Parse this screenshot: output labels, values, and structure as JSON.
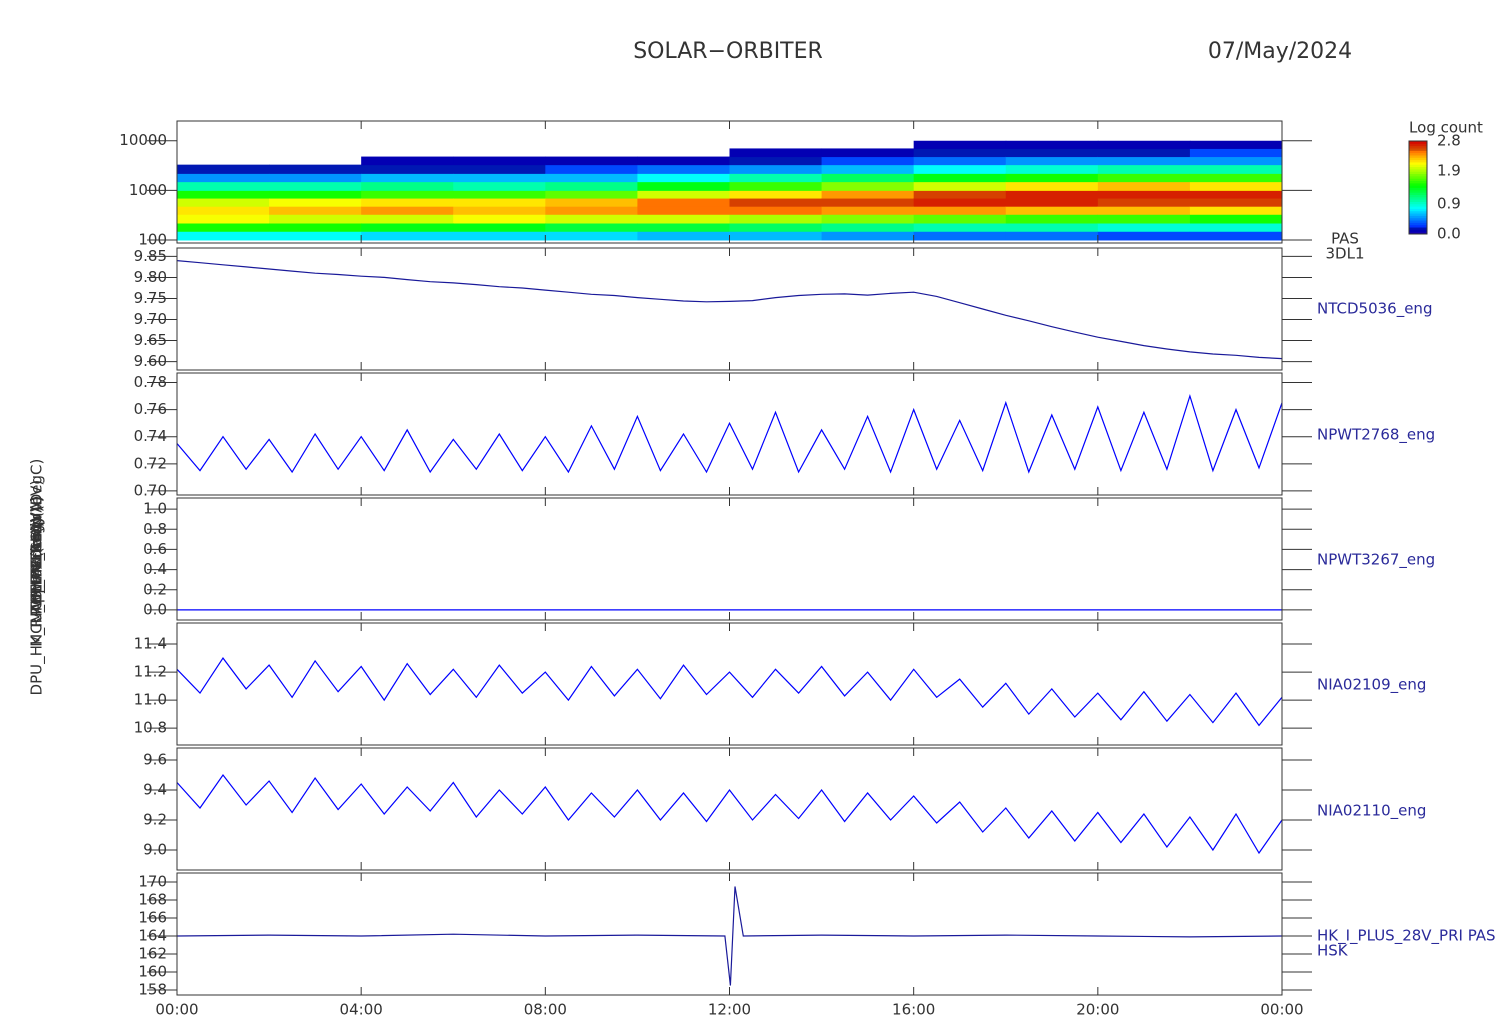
{
  "title": "SOLAR−ORBITER",
  "date": "07/May/2024",
  "chart_data": [
    {
      "type": "spectrogram",
      "ytitle": "Energy (eV)",
      "labels": [
        "PAS",
        "3DL1"
      ],
      "ylog": true,
      "ylim": [
        87,
        25000
      ],
      "yticks": [
        100,
        1000,
        10000
      ],
      "xlim": [
        0,
        24
      ],
      "x_bins": [
        0,
        2,
        4,
        6,
        8,
        10,
        12,
        14,
        16,
        18,
        20,
        22,
        24
      ],
      "y_bins": [
        100,
        150,
        220,
        330,
        480,
        700,
        1000,
        1500,
        2200,
        3300,
        4800,
        7000,
        10000
      ],
      "z": [
        [
          0.8,
          1.5,
          2.1,
          2.2,
          2.0,
          1.5,
          1.0,
          0.5,
          0.2,
          null,
          null,
          null
        ],
        [
          0.8,
          1.5,
          2.0,
          2.3,
          2.1,
          1.5,
          1.0,
          0.5,
          0.2,
          null,
          null,
          null
        ],
        [
          0.7,
          1.4,
          2.0,
          2.4,
          2.2,
          1.6,
          1.1,
          0.6,
          0.2,
          0.1,
          null,
          null
        ],
        [
          0.7,
          1.4,
          2.1,
          2.3,
          2.2,
          1.6,
          1.0,
          0.6,
          0.2,
          0.1,
          null,
          null
        ],
        [
          0.7,
          1.3,
          2.0,
          2.4,
          2.3,
          1.7,
          1.1,
          0.6,
          0.3,
          0.1,
          null,
          null
        ],
        [
          0.6,
          1.3,
          2.0,
          2.5,
          2.5,
          2.0,
          1.4,
          0.8,
          0.4,
          0.1,
          null,
          null
        ],
        [
          0.6,
          1.2,
          1.9,
          2.5,
          2.6,
          2.2,
          1.6,
          1.0,
          0.5,
          0.2,
          0.1,
          null
        ],
        [
          0.5,
          1.1,
          1.8,
          2.4,
          2.6,
          2.4,
          1.8,
          1.2,
          0.6,
          0.3,
          0.1,
          null
        ],
        [
          0.4,
          1.0,
          1.7,
          2.4,
          2.7,
          2.6,
          2.0,
          1.4,
          0.8,
          0.4,
          0.2,
          0.1
        ],
        [
          0.4,
          1.0,
          1.6,
          2.3,
          2.7,
          2.7,
          2.2,
          1.5,
          0.9,
          0.5,
          0.2,
          0.1
        ],
        [
          0.3,
          0.9,
          1.6,
          2.3,
          2.6,
          2.7,
          2.3,
          1.6,
          1.0,
          0.5,
          0.2,
          0.1
        ],
        [
          0.3,
          0.9,
          1.5,
          2.2,
          2.6,
          2.7,
          2.2,
          1.6,
          1.0,
          0.5,
          0.3,
          0.1
        ]
      ],
      "colorbar_title": "Log count",
      "clim": [
        0,
        2.8
      ],
      "cticks": [
        {
          "value": 0,
          "label": "0.0"
        },
        0.9,
        1.9,
        2.8
      ]
    },
    {
      "type": "line",
      "ytitle": "Approx Temp (DegC)",
      "labels": [
        "NTCD5036_eng"
      ],
      "color": "#1a1a9a",
      "ylim": [
        9.58,
        9.87
      ],
      "xlim": [
        0,
        24
      ],
      "yticks": [
        {
          "value": 9.6,
          "label": "9.60"
        },
        9.65,
        {
          "value": 9.7,
          "label": "9.70"
        },
        9.75,
        {
          "value": 9.8,
          "label": "9.80"
        },
        9.85
      ],
      "x": [
        0,
        0.5,
        1,
        1.5,
        2,
        2.5,
        3,
        3.5,
        4,
        4.5,
        5,
        5.5,
        6,
        6.5,
        7,
        7.5,
        8,
        8.5,
        9,
        9.5,
        10,
        10.5,
        11,
        11.5,
        12,
        12.5,
        13,
        13.5,
        14,
        14.5,
        15,
        15.5,
        16,
        16.5,
        17,
        17.5,
        18,
        18.5,
        19,
        19.5,
        20,
        20.5,
        21,
        21.5,
        22,
        22.5,
        23,
        23.5,
        24
      ],
      "values": [
        9.84,
        9.835,
        9.83,
        9.825,
        9.82,
        9.815,
        9.81,
        9.807,
        9.803,
        9.8,
        9.795,
        9.79,
        9.787,
        9.783,
        9.778,
        9.775,
        9.77,
        9.765,
        9.76,
        9.757,
        9.752,
        9.748,
        9.744,
        9.742,
        9.743,
        9.745,
        9.752,
        9.757,
        9.76,
        9.761,
        9.758,
        9.762,
        9.765,
        9.755,
        9.74,
        9.725,
        9.71,
        9.697,
        9.683,
        9.67,
        9.658,
        9.648,
        9.638,
        9.63,
        9.623,
        9.618,
        9.615,
        9.61,
        9.607
      ]
    },
    {
      "type": "line",
      "ytitle": "SWA-EAS1 (V)",
      "labels": [
        "NPWT2768_eng"
      ],
      "color": "#0000ff",
      "ylim": [
        0.697,
        0.787
      ],
      "xlim": [
        0,
        24
      ],
      "yticks": [
        {
          "value": 0.7,
          "label": "0.70"
        },
        0.72,
        0.74,
        0.76,
        0.78
      ],
      "x": [
        0,
        0.5,
        1,
        1.5,
        2,
        2.5,
        3,
        3.5,
        4,
        4.5,
        5,
        5.5,
        6,
        6.5,
        7,
        7.5,
        8,
        8.5,
        9,
        9.5,
        10,
        10.5,
        11,
        11.5,
        12,
        12.5,
        13,
        13.5,
        14,
        14.5,
        15,
        15.5,
        16,
        16.5,
        17,
        17.5,
        18,
        18.5,
        19,
        19.5,
        20,
        20.5,
        21,
        21.5,
        22,
        22.5,
        23,
        23.5,
        24
      ],
      "values": [
        0.735,
        0.715,
        0.74,
        0.716,
        0.738,
        0.714,
        0.742,
        0.716,
        0.74,
        0.715,
        0.745,
        0.714,
        0.738,
        0.716,
        0.742,
        0.715,
        0.74,
        0.714,
        0.748,
        0.716,
        0.755,
        0.715,
        0.742,
        0.714,
        0.75,
        0.716,
        0.758,
        0.714,
        0.745,
        0.716,
        0.755,
        0.714,
        0.76,
        0.716,
        0.752,
        0.715,
        0.765,
        0.714,
        0.756,
        0.716,
        0.762,
        0.715,
        0.758,
        0.716,
        0.77,
        0.715,
        0.76,
        0.717,
        0.765
      ]
    },
    {
      "type": "line",
      "ytitle": "THERM_C4 (V)",
      "labels": [
        "NPWT3267_eng"
      ],
      "color": "#0000ff",
      "ylim": [
        -0.1,
        1.11
      ],
      "xlim": [
        0,
        24
      ],
      "yticks": [
        {
          "value": 0,
          "label": "0.0"
        },
        0.2,
        0.4,
        0.6,
        0.8,
        {
          "value": 1,
          "label": "1.0"
        }
      ],
      "x": [
        0,
        24
      ],
      "values": [
        0,
        0
      ]
    },
    {
      "type": "line",
      "ytitle": "RPW_LFR (mA)",
      "labels": [
        "NIA02109_eng"
      ],
      "color": "#0000ff",
      "ylim": [
        10.68,
        11.55
      ],
      "xlim": [
        0,
        24
      ],
      "yticks": [
        10.8,
        {
          "value": 11,
          "label": "11.0"
        },
        11.2,
        11.4
      ],
      "x": [
        0,
        0.5,
        1,
        1.5,
        2,
        2.5,
        3,
        3.5,
        4,
        4.5,
        5,
        5.5,
        6,
        6.5,
        7,
        7.5,
        8,
        8.5,
        9,
        9.5,
        10,
        10.5,
        11,
        11.5,
        12,
        12.5,
        13,
        13.5,
        14,
        14.5,
        15,
        15.5,
        16,
        16.5,
        17,
        17.5,
        18,
        18.5,
        19,
        19.5,
        20,
        20.5,
        21,
        21.5,
        22,
        22.5,
        23,
        23.5,
        24
      ],
      "values": [
        11.22,
        11.05,
        11.3,
        11.08,
        11.25,
        11.02,
        11.28,
        11.06,
        11.24,
        11.0,
        11.26,
        11.04,
        11.22,
        11.02,
        11.25,
        11.05,
        11.2,
        11.0,
        11.24,
        11.03,
        11.22,
        11.01,
        11.25,
        11.04,
        11.2,
        11.02,
        11.22,
        11.05,
        11.24,
        11.03,
        11.2,
        11.0,
        11.22,
        11.02,
        11.15,
        10.95,
        11.12,
        10.9,
        11.08,
        10.88,
        11.05,
        10.86,
        11.06,
        10.85,
        11.04,
        10.84,
        11.05,
        10.82,
        11.02
      ]
    },
    {
      "type": "line",
      "ytitle": "MCU_CURR (mA)",
      "labels": [
        "NIA02110_eng"
      ],
      "color": "#0000ff",
      "ylim": [
        8.867,
        9.68
      ],
      "xlim": [
        0,
        24
      ],
      "yticks": [
        {
          "value": 9,
          "label": "9.0"
        },
        9.2,
        9.4,
        9.6
      ],
      "x": [
        0,
        0.5,
        1,
        1.5,
        2,
        2.5,
        3,
        3.5,
        4,
        4.5,
        5,
        5.5,
        6,
        6.5,
        7,
        7.5,
        8,
        8.5,
        9,
        9.5,
        10,
        10.5,
        11,
        11.5,
        12,
        12.5,
        13,
        13.5,
        14,
        14.5,
        15,
        15.5,
        16,
        16.5,
        17,
        17.5,
        18,
        18.5,
        19,
        19.5,
        20,
        20.5,
        21,
        21.5,
        22,
        22.5,
        23,
        23.5,
        24
      ],
      "values": [
        9.45,
        9.28,
        9.5,
        9.3,
        9.46,
        9.25,
        9.48,
        9.27,
        9.44,
        9.24,
        9.42,
        9.26,
        9.45,
        9.22,
        9.4,
        9.24,
        9.42,
        9.2,
        9.38,
        9.22,
        9.4,
        9.2,
        9.38,
        9.19,
        9.4,
        9.2,
        9.37,
        9.21,
        9.4,
        9.19,
        9.38,
        9.2,
        9.36,
        9.18,
        9.32,
        9.12,
        9.28,
        9.08,
        9.26,
        9.06,
        9.25,
        9.05,
        9.24,
        9.02,
        9.22,
        9.0,
        9.24,
        8.98,
        9.2
      ]
    },
    {
      "type": "line",
      "ytitle": "DPU_HK_IMON_PCDU (mA)",
      "labels": [
        "HK_I_PLUS_28V_PRI PAS",
        "HSK"
      ],
      "color": "#1a1a9a",
      "ylim": [
        157.44,
        171
      ],
      "xlim": [
        0,
        24
      ],
      "yticks": [
        158,
        160,
        162,
        164,
        166,
        168,
        170
      ],
      "x": [
        0,
        2,
        4,
        6,
        8,
        10,
        11.9,
        12.02,
        12.12,
        12.3,
        14,
        16,
        18,
        20,
        22,
        24
      ],
      "values": [
        164,
        164.1,
        164,
        164.2,
        164,
        164.1,
        164,
        158.5,
        169.5,
        164,
        164.1,
        164,
        164.1,
        164,
        163.9,
        164
      ],
      "xticks": [
        {
          "value": 0,
          "label": "00:00"
        },
        {
          "value": 4,
          "label": "04:00"
        },
        {
          "value": 8,
          "label": "08:00"
        },
        {
          "value": 12,
          "label": "12:00"
        },
        {
          "value": 16,
          "label": "16:00"
        },
        {
          "value": 20,
          "label": "20:00"
        },
        {
          "value": 24,
          "label": "00:00"
        }
      ]
    }
  ]
}
